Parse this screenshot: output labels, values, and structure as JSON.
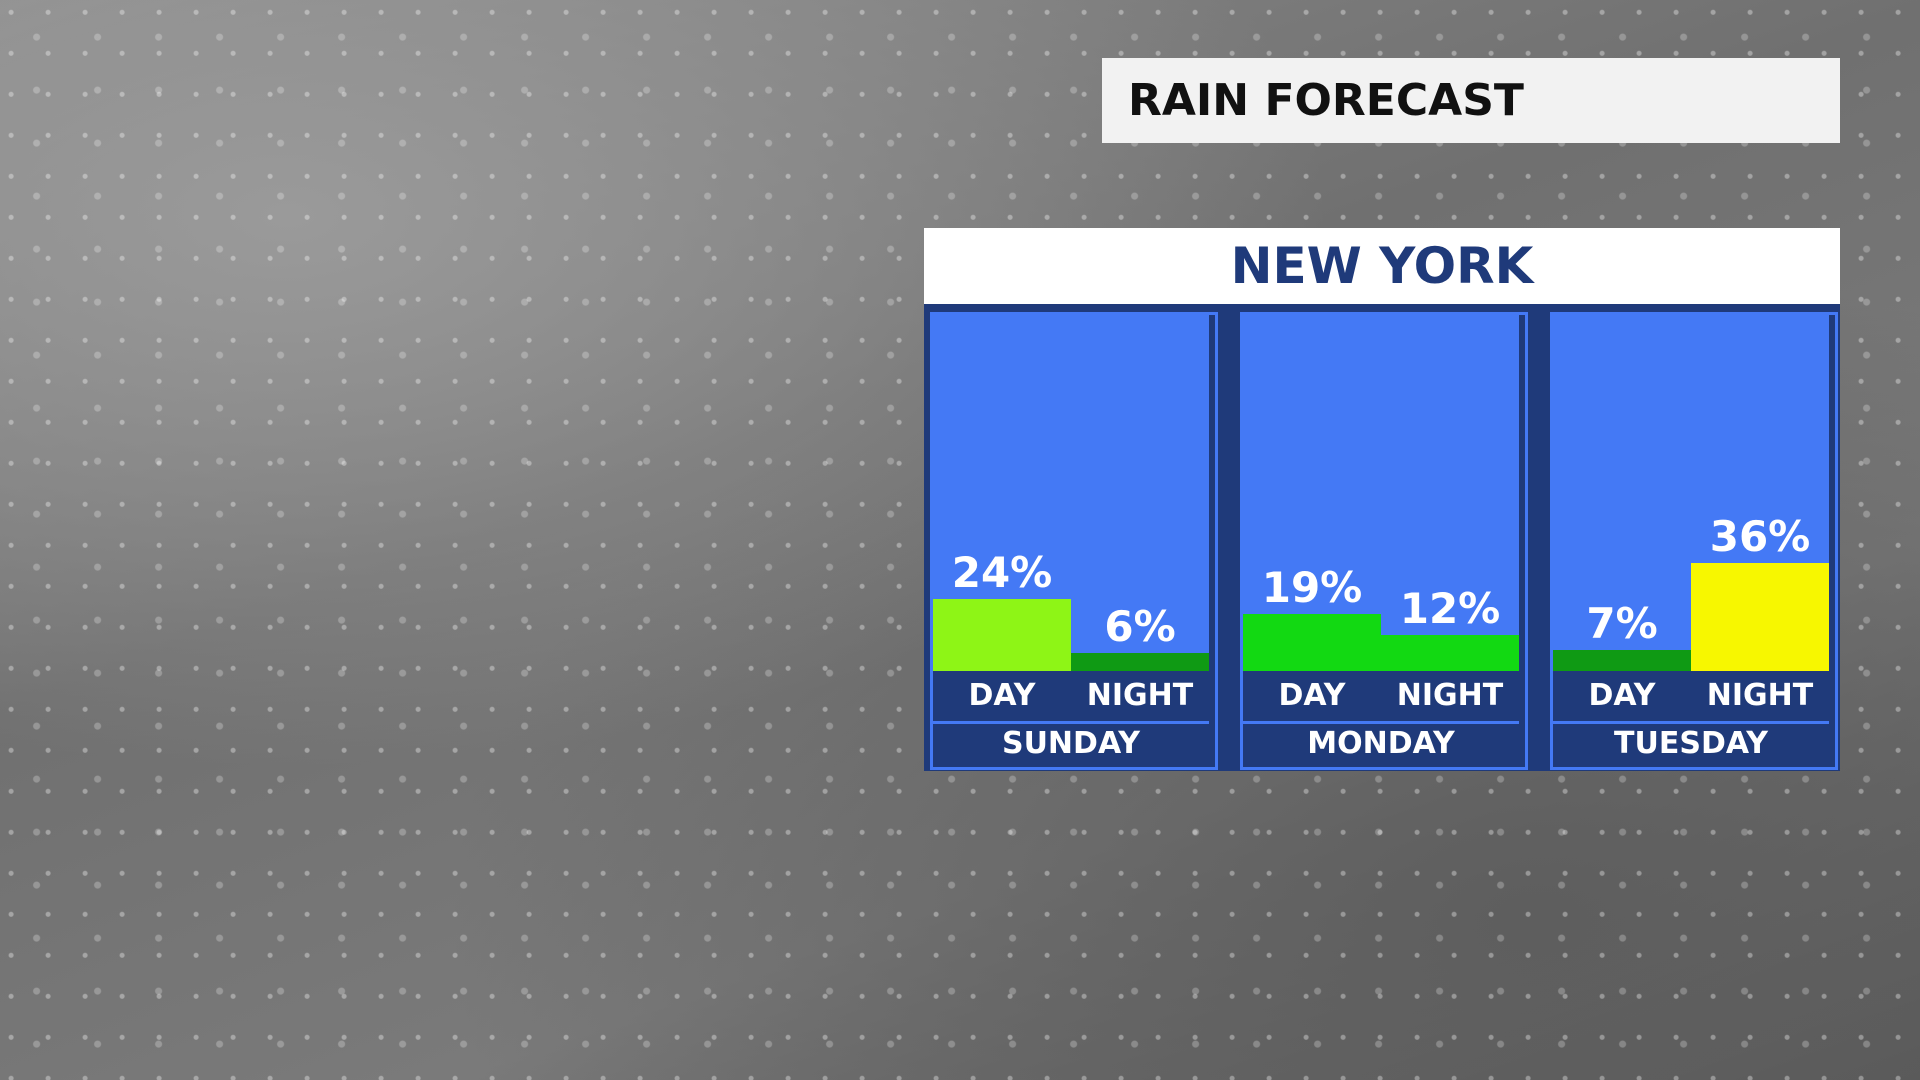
{
  "chart_data": {
    "type": "bar",
    "title": "RAIN FORECAST",
    "subtitle": "NEW YORK",
    "categories": [
      "SUNDAY",
      "MONDAY",
      "TUESDAY"
    ],
    "series": [
      {
        "name": "DAY",
        "values": [
          24,
          19,
          7
        ],
        "value_labels": [
          "24%",
          "19%",
          "7%"
        ],
        "colors": [
          "#8ef516",
          "#12d912",
          "#0f9a14"
        ]
      },
      {
        "name": "NIGHT",
        "values": [
          6,
          12,
          36
        ],
        "value_labels": [
          "6%",
          "12%",
          "36%"
        ],
        "colors": [
          "#0f9a14",
          "#12d912",
          "#f7f700"
        ]
      }
    ]
  }
}
